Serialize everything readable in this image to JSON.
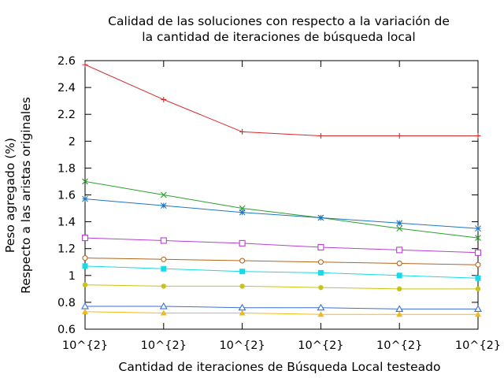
{
  "chart_data": {
    "type": "line",
    "title_lines": [
      "Calidad de las soluciones con respecto a la variación de",
      "la cantidad de iteraciones de búsqueda local"
    ],
    "xlabel": "Cantidad de iteraciones de Búsqueda Local testeado",
    "ylabel_lines": [
      "Peso agregado (%)",
      "Respecto a las aristas originales"
    ],
    "categories": [
      "10^{2}",
      "10^{2}",
      "10^{2}",
      "10^{2}",
      "10^{2}",
      "10^{2}"
    ],
    "ylim": [
      0.6,
      2.6
    ],
    "yticks": [
      "0.6",
      "0.8",
      "1",
      "1.2",
      "1.4",
      "1.6",
      "1.8",
      "2",
      "2.2",
      "2.4",
      "2.6"
    ],
    "grid": false,
    "legend": "none",
    "series": [
      {
        "color": "#d62728",
        "marker": "plus",
        "values": [
          2.57,
          2.31,
          2.07,
          2.04,
          2.04,
          2.04
        ]
      },
      {
        "color": "#2ca02c",
        "marker": "cross",
        "values": [
          1.7,
          1.6,
          1.5,
          1.43,
          1.35,
          1.28
        ]
      },
      {
        "color": "#1f77c4",
        "marker": "star",
        "values": [
          1.57,
          1.52,
          1.47,
          1.43,
          1.39,
          1.35
        ]
      },
      {
        "color": "#b93fd6",
        "marker": "open-square",
        "values": [
          1.28,
          1.26,
          1.24,
          1.21,
          1.19,
          1.17
        ]
      },
      {
        "color": "#b5651d",
        "marker": "open-circle",
        "values": [
          1.13,
          1.12,
          1.11,
          1.1,
          1.09,
          1.08
        ]
      },
      {
        "color": "#1ad8e6",
        "marker": "filled-square",
        "values": [
          1.07,
          1.05,
          1.03,
          1.02,
          1.0,
          0.98
        ]
      },
      {
        "color": "#c9c217",
        "marker": "filled-circle",
        "values": [
          0.93,
          0.92,
          0.92,
          0.91,
          0.9,
          0.9
        ]
      },
      {
        "color": "#3a6fd8",
        "marker": "open-triangle",
        "values": [
          0.77,
          0.77,
          0.76,
          0.76,
          0.75,
          0.75
        ]
      },
      {
        "color": "#f2b91c",
        "marker": "filled-triangle",
        "values": [
          0.73,
          0.72,
          0.72,
          0.71,
          0.71,
          0.71
        ]
      }
    ]
  }
}
